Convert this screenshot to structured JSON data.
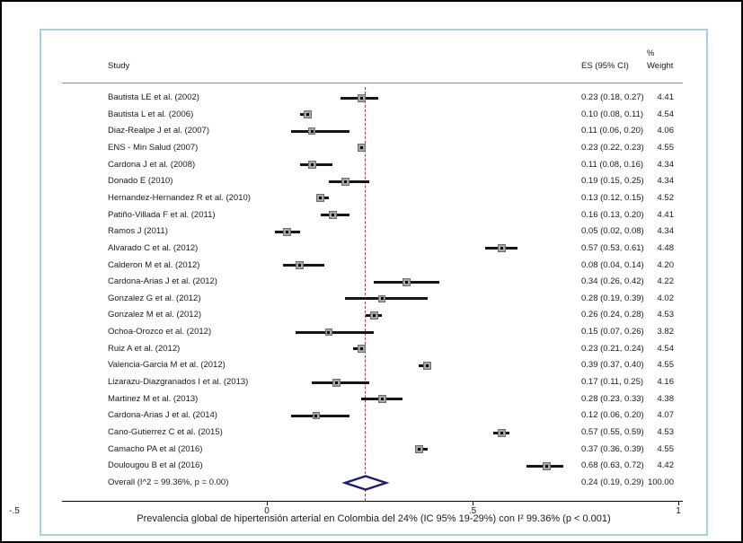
{
  "chart_data": {
    "type": "forest",
    "columns": {
      "study": "Study",
      "es": "ES (95% CI)",
      "weight_pct": "%",
      "weight": "Weight"
    },
    "studies": [
      {
        "label": "Bautista LE et al. (2002)",
        "es": 0.23,
        "lo": 0.18,
        "hi": 0.27,
        "es_text": "0.23 (0.18, 0.27)",
        "weight": "4.41"
      },
      {
        "label": "Bautista L et al. (2006)",
        "es": 0.1,
        "lo": 0.08,
        "hi": 0.11,
        "es_text": "0.10 (0.08, 0.11)",
        "weight": "4.54"
      },
      {
        "label": "Diaz-Realpe J et al. (2007)",
        "es": 0.11,
        "lo": 0.06,
        "hi": 0.2,
        "es_text": "0.11 (0.06, 0.20)",
        "weight": "4.06"
      },
      {
        "label": "ENS - Min Salud (2007)",
        "es": 0.23,
        "lo": 0.22,
        "hi": 0.23,
        "es_text": "0.23 (0.22, 0.23)",
        "weight": "4.55"
      },
      {
        "label": "Cardona J et al. (2008)",
        "es": 0.11,
        "lo": 0.08,
        "hi": 0.16,
        "es_text": "0.11 (0.08, 0.16)",
        "weight": "4.34"
      },
      {
        "label": "Donado E (2010)",
        "es": 0.19,
        "lo": 0.15,
        "hi": 0.25,
        "es_text": "0.19 (0.15, 0.25)",
        "weight": "4.34"
      },
      {
        "label": "Hernandez-Hernandez R et al. (2010)",
        "es": 0.13,
        "lo": 0.12,
        "hi": 0.15,
        "es_text": "0.13 (0.12, 0.15)",
        "weight": "4.52"
      },
      {
        "label": "Patiño-Villada F et al. (2011)",
        "es": 0.16,
        "lo": 0.13,
        "hi": 0.2,
        "es_text": "0.16 (0.13, 0.20)",
        "weight": "4.41"
      },
      {
        "label": "Ramos J (2011)",
        "es": 0.05,
        "lo": 0.02,
        "hi": 0.08,
        "es_text": "0.05 (0.02, 0.08)",
        "weight": "4.34"
      },
      {
        "label": "Alvarado C et al. (2012)",
        "es": 0.57,
        "lo": 0.53,
        "hi": 0.61,
        "es_text": "0.57 (0.53, 0.61)",
        "weight": "4.48"
      },
      {
        "label": "Calderon M et al. (2012)",
        "es": 0.08,
        "lo": 0.04,
        "hi": 0.14,
        "es_text": "0.08 (0.04, 0.14)",
        "weight": "4.20"
      },
      {
        "label": "Cardona-Arias J et al. (2012)",
        "es": 0.34,
        "lo": 0.26,
        "hi": 0.42,
        "es_text": "0.34 (0.26, 0.42)",
        "weight": "4.22"
      },
      {
        "label": "Gonzalez G et al. (2012)",
        "es": 0.28,
        "lo": 0.19,
        "hi": 0.39,
        "es_text": "0.28 (0.19, 0.39)",
        "weight": "4.02"
      },
      {
        "label": "Gonzalez M et al. (2012)",
        "es": 0.26,
        "lo": 0.24,
        "hi": 0.28,
        "es_text": "0.26 (0.24, 0.28)",
        "weight": "4.53"
      },
      {
        "label": "Ochoa-Orozco et al. (2012)",
        "es": 0.15,
        "lo": 0.07,
        "hi": 0.26,
        "es_text": "0.15 (0.07, 0.26)",
        "weight": "3.82"
      },
      {
        "label": "Ruiz A et al. (2012)",
        "es": 0.23,
        "lo": 0.21,
        "hi": 0.24,
        "es_text": "0.23 (0.21, 0.24)",
        "weight": "4.54"
      },
      {
        "label": "Valencia-Garcia M et al. (2012)",
        "es": 0.39,
        "lo": 0.37,
        "hi": 0.4,
        "es_text": "0.39 (0.37, 0.40)",
        "weight": "4.55"
      },
      {
        "label": "Lizarazu-Diazgranados I et al. (2013)",
        "es": 0.17,
        "lo": 0.11,
        "hi": 0.25,
        "es_text": "0.17 (0.11, 0.25)",
        "weight": "4.16"
      },
      {
        "label": "Martinez M et al. (2013)",
        "es": 0.28,
        "lo": 0.23,
        "hi": 0.33,
        "es_text": "0.28 (0.23, 0.33)",
        "weight": "4.38"
      },
      {
        "label": "Cardona-Arias J et al. (2014)",
        "es": 0.12,
        "lo": 0.06,
        "hi": 0.2,
        "es_text": "0.12 (0.06, 0.20)",
        "weight": "4.07"
      },
      {
        "label": "Cano-Gutierrez C et al. (2015)",
        "es": 0.57,
        "lo": 0.55,
        "hi": 0.59,
        "es_text": "0.57 (0.55, 0.59)",
        "weight": "4.53"
      },
      {
        "label": "Camacho PA et al (2016)",
        "es": 0.37,
        "lo": 0.36,
        "hi": 0.39,
        "es_text": "0.37 (0.36, 0.39)",
        "weight": "4.55"
      },
      {
        "label": "Doulougou B et al (2016)",
        "es": 0.68,
        "lo": 0.63,
        "hi": 0.72,
        "es_text": "0.68 (0.63, 0.72)",
        "weight": "4.42"
      }
    ],
    "overall": {
      "label": "Overall (I^2 = 99.36%, p = 0.00)",
      "es": 0.24,
      "lo": 0.19,
      "hi": 0.29,
      "es_text": "0.24 (0.19, 0.29)",
      "weight": "100.00"
    },
    "axis": {
      "ticks": [
        "-.5",
        "0",
        ".5",
        "1"
      ],
      "tick_values": [
        -0.5,
        0,
        0.5,
        1
      ],
      "xlim": [
        -0.5,
        1
      ],
      "ref_line": 0.24
    },
    "caption": "Prevalencia global de hipertensión arterial en Colombia del 24% (IC 95% 19-29%) con I² 99.36% (p < 0.001)",
    "colors": {
      "marker": "#a6a6a6",
      "marker_border": "#6f6f6f",
      "marker_center": "#000000",
      "ci": "#141414",
      "diamond": "#1c1c74",
      "ref_line": "#b23a48",
      "frame": "#a3d4dd",
      "axis": "#000000"
    }
  }
}
